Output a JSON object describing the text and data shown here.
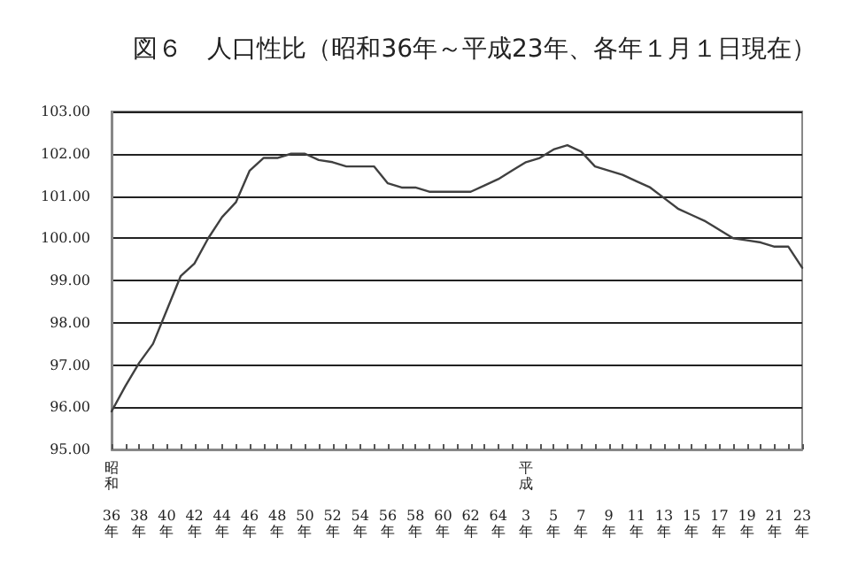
{
  "chart_data": {
    "type": "line",
    "title": "図６　人口性比（昭和36年～平成23年、各年１月１日現在）",
    "categories": [
      "昭和36年",
      null,
      "38年",
      null,
      "40年",
      null,
      "42年",
      null,
      "44年",
      null,
      "46年",
      null,
      "48年",
      null,
      "50年",
      null,
      "52年",
      null,
      "54年",
      null,
      "56年",
      null,
      "58年",
      null,
      "60年",
      null,
      "62年",
      null,
      "64年",
      null,
      "平成3年",
      null,
      "5年",
      null,
      "7年",
      null,
      "9年",
      null,
      "11年",
      null,
      "13年",
      null,
      "15年",
      null,
      "17年",
      null,
      "19年",
      null,
      "21年",
      null,
      "23年"
    ],
    "series": [
      {
        "color": "#404040",
        "values": [
          95.9,
          96.5,
          97.05,
          97.5,
          98.3,
          99.1,
          99.4,
          100.0,
          100.5,
          100.85,
          101.6,
          101.9,
          101.9,
          102.0,
          102.0,
          101.85,
          101.8,
          101.7,
          101.7,
          101.7,
          101.3,
          101.2,
          101.2,
          101.1,
          101.1,
          101.1,
          101.1,
          101.25,
          101.4,
          101.6,
          101.8,
          101.9,
          102.1,
          102.2,
          102.05,
          101.7,
          101.6,
          101.5,
          101.35,
          101.2,
          100.95,
          100.7,
          100.55,
          100.4,
          100.2,
          100.0,
          99.95,
          99.9,
          99.8,
          99.8,
          99.3
        ]
      }
    ],
    "ylim": [
      95,
      103
    ],
    "yticks": [
      {
        "value": 95,
        "label": "95.00"
      },
      {
        "value": 96,
        "label": "96.00"
      },
      {
        "value": 97,
        "label": "97.00"
      },
      {
        "value": 98,
        "label": "98.00"
      },
      {
        "value": 99,
        "label": "99.00"
      },
      {
        "value": 100,
        "label": "100.00"
      },
      {
        "value": 101,
        "label": "101.00"
      },
      {
        "value": 102,
        "label": "102.00"
      },
      {
        "value": 103,
        "label": "103.00"
      }
    ],
    "grid": "y",
    "marker": "none",
    "line_style": "solid"
  }
}
